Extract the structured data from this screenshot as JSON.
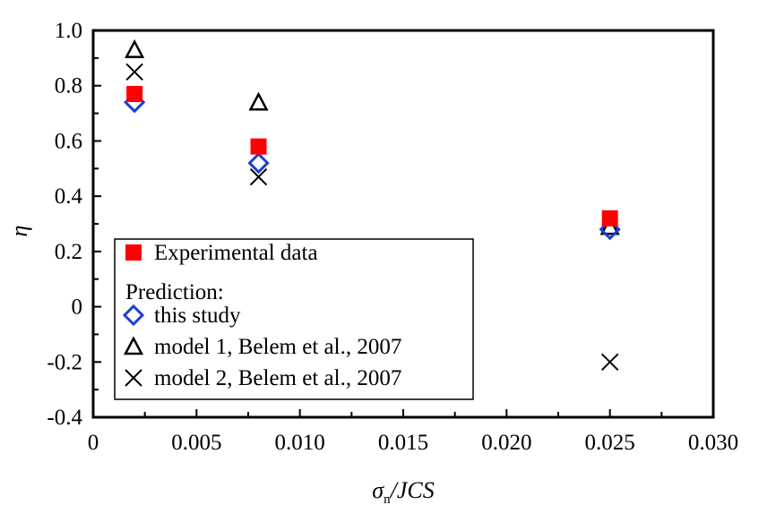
{
  "chart_data": {
    "type": "scatter",
    "xlabel": "σn/JCS",
    "xlabel_main": "σ",
    "xlabel_sub": "n",
    "xlabel_tail": "/JCS",
    "ylabel": "η",
    "xlim": [
      0,
      0.03
    ],
    "ylim": [
      -0.4,
      1.0
    ],
    "xticks": [
      "0",
      "0.005",
      "0.010",
      "0.015",
      "0.020",
      "0.025",
      "0.030"
    ],
    "yticks": [
      "-0.4",
      "-0.2",
      "0",
      "0.2",
      "0.4",
      "0.6",
      "0.8",
      "1.0"
    ],
    "grid": false,
    "legend_position": "bottom-left",
    "legend_heading": "Prediction:",
    "series": [
      {
        "name": "Experimental data",
        "marker": "filled-square",
        "color": "#ff0000",
        "x": [
          0.002,
          0.008,
          0.025
        ],
        "y": [
          0.77,
          0.58,
          0.32
        ]
      },
      {
        "name": "this study",
        "marker": "open-diamond",
        "color": "#1a3fd6",
        "x": [
          0.002,
          0.008,
          0.025
        ],
        "y": [
          0.74,
          0.52,
          0.28
        ]
      },
      {
        "name": "model 1, Belem et al., 2007",
        "marker": "open-triangle",
        "color": "#000000",
        "x": [
          0.002,
          0.008,
          0.025
        ],
        "y": [
          0.93,
          0.74,
          0.29
        ]
      },
      {
        "name": "model 2, Belem et al., 2007",
        "marker": "cross",
        "color": "#000000",
        "x": [
          0.002,
          0.008,
          0.025
        ],
        "y": [
          0.85,
          0.47,
          -0.2
        ]
      }
    ]
  }
}
